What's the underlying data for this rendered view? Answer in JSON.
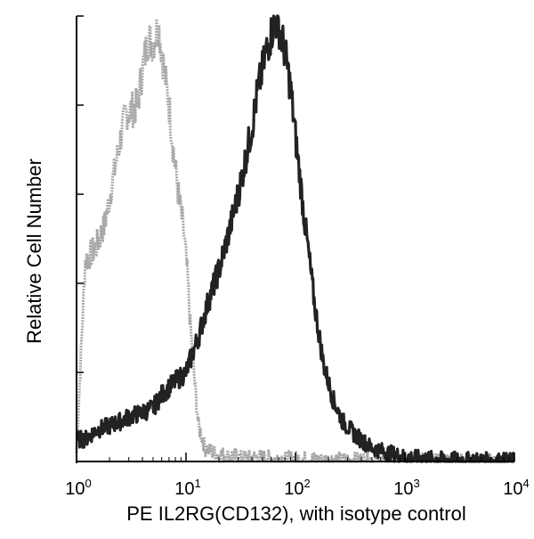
{
  "chart_data": {
    "type": "line",
    "xlabel": "PE IL2RG(CD132), with isotype control",
    "ylabel": "Relative Cell Number",
    "x_scale": "log",
    "xlim": [
      1,
      10000
    ],
    "ylim": [
      0,
      1
    ],
    "x_ticks": [
      {
        "base": "10",
        "exp": "0",
        "value": 1
      },
      {
        "base": "10",
        "exp": "1",
        "value": 10
      },
      {
        "base": "10",
        "exp": "2",
        "value": 100
      },
      {
        "base": "10",
        "exp": "3",
        "value": 1000
      },
      {
        "base": "10",
        "exp": "4",
        "value": 10000
      }
    ],
    "y_tick_count": 5,
    "grid": false,
    "series": [
      {
        "color": "#a8a8a8",
        "x": [
          1,
          1.2,
          1.5,
          1.8,
          2.1,
          2.5,
          2.8,
          3.2,
          3.6,
          4.0,
          4.5,
          5.0,
          5.6,
          6.3,
          7.0,
          7.8,
          8.5,
          9.5,
          10.3,
          11.0,
          12.0,
          13.0,
          15.0,
          20.0,
          30.0,
          50.0,
          100.0,
          300.0,
          10000
        ],
        "y": [
          0.02,
          0.45,
          0.48,
          0.53,
          0.62,
          0.72,
          0.78,
          0.79,
          0.8,
          0.88,
          0.95,
          0.94,
          0.98,
          0.88,
          0.8,
          0.68,
          0.6,
          0.52,
          0.42,
          0.3,
          0.18,
          0.08,
          0.03,
          0.015,
          0.01,
          0.008,
          0.005,
          0.003,
          0.0
        ]
      },
      {
        "color": "#222222",
        "x": [
          1,
          1.2,
          1.5,
          2.0,
          2.5,
          3.0,
          4.0,
          5.0,
          6.0,
          8.0,
          10.0,
          13.0,
          16.0,
          20.0,
          25.0,
          30.0,
          35.0,
          40.0,
          45.0,
          50.0,
          55.0,
          60.0,
          65.0,
          70.0,
          75.0,
          80.0,
          90.0,
          100.0,
          120.0,
          150.0,
          180.0,
          220.0,
          270.0,
          350.0,
          500.0,
          700.0,
          1000.0,
          2000.0,
          5000.0,
          10000
        ],
        "y": [
          0.05,
          0.05,
          0.07,
          0.08,
          0.09,
          0.1,
          0.11,
          0.12,
          0.15,
          0.18,
          0.2,
          0.28,
          0.36,
          0.43,
          0.52,
          0.6,
          0.68,
          0.75,
          0.83,
          0.88,
          0.93,
          0.96,
          0.99,
          0.98,
          0.95,
          0.92,
          0.84,
          0.73,
          0.55,
          0.35,
          0.22,
          0.14,
          0.09,
          0.06,
          0.03,
          0.02,
          0.01,
          0.005,
          0.003,
          0.002
        ]
      }
    ]
  }
}
